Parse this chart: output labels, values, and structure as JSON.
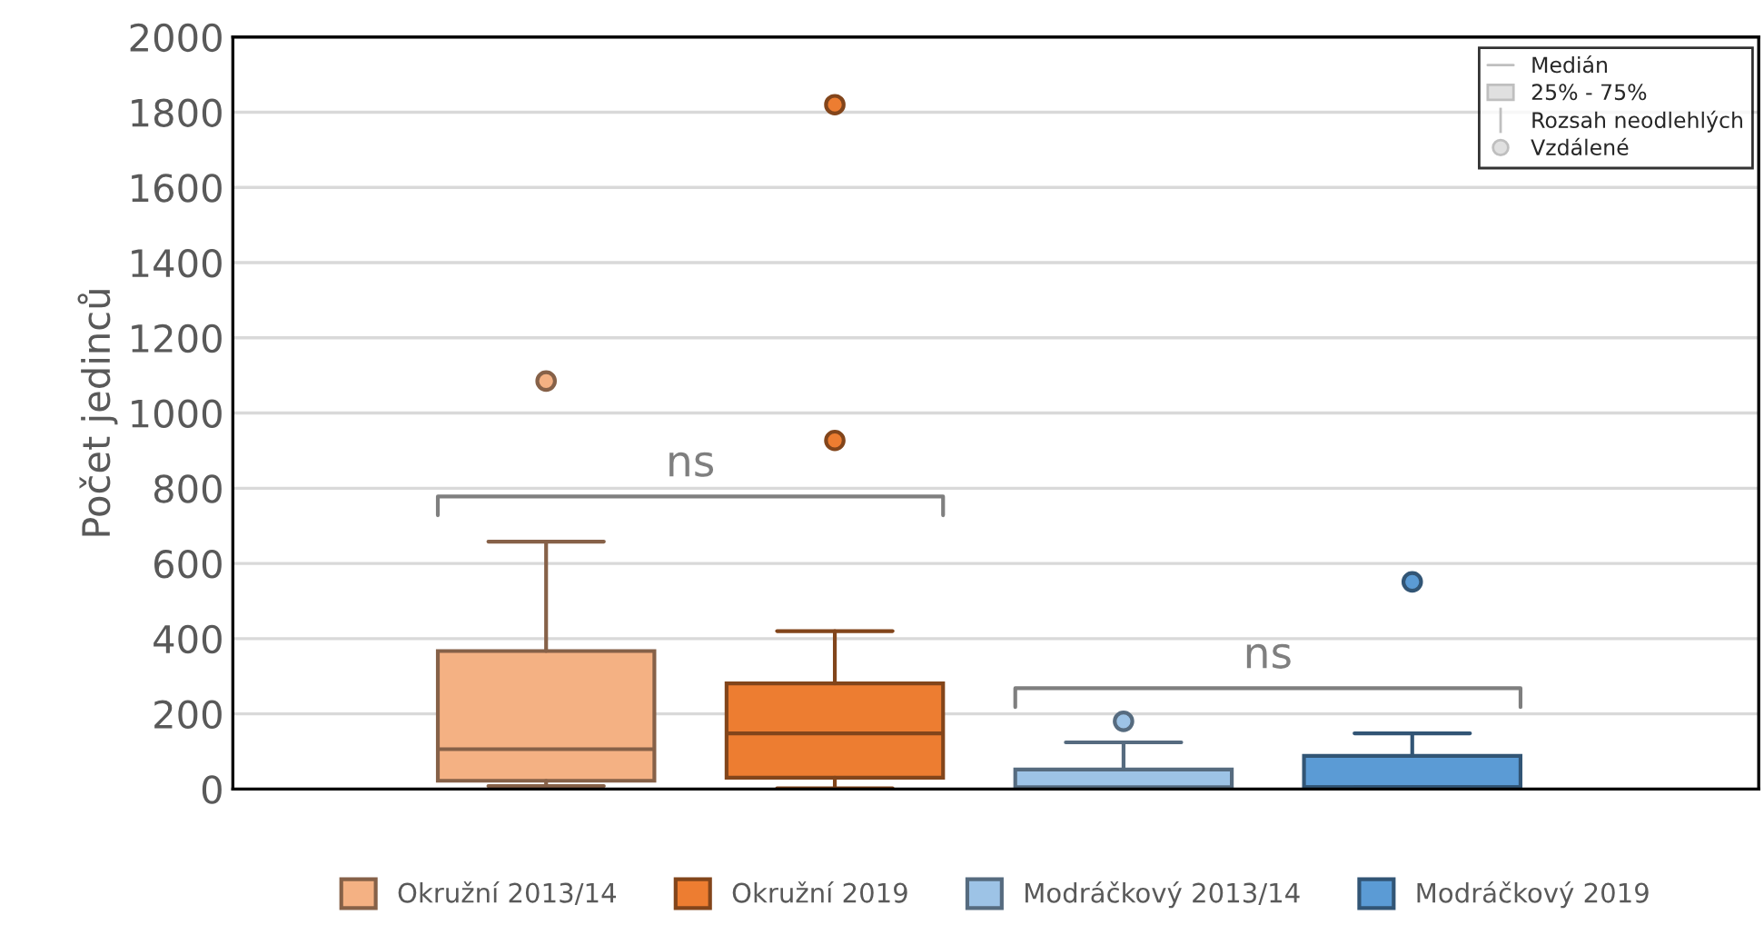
{
  "chart_data": {
    "type": "box",
    "ylabel": "Počet jedinců",
    "categories": [
      null
    ],
    "series": [
      {
        "name": "Okružní 2013/14",
        "color": "#f4b183",
        "boxes": [
          {
            "low": 8,
            "q1": 22,
            "median": 106,
            "q3": 367,
            "high": 658,
            "outliers": [
              1085
            ]
          }
        ]
      },
      {
        "name": "Okružní 2019",
        "color": "#ed7d31",
        "boxes": [
          {
            "low": 2,
            "q1": 30,
            "median": 148,
            "q3": 281,
            "high": 420,
            "outliers": [
              1820,
              927
            ]
          }
        ]
      },
      {
        "name": "Modráčkový 2013/14",
        "color": "#9dc3e6",
        "boxes": [
          {
            "low": 3,
            "q1": 3,
            "median": 5,
            "q3": 52,
            "high": 124,
            "outliers": [
              180
            ]
          }
        ]
      },
      {
        "name": "Modráčkový 2019",
        "color": "#5b9bd5",
        "boxes": [
          {
            "low": 5,
            "q1": 5,
            "median": 5,
            "q3": 88,
            "high": 148,
            "outliers": [
              551
            ]
          }
        ]
      }
    ],
    "ylim": [
      0,
      2000
    ],
    "yticks": [
      0,
      200,
      400,
      600,
      800,
      1000,
      1200,
      1400,
      1600,
      1800,
      2000
    ],
    "grid": "y",
    "legend": "bottom",
    "annotations": [
      "ns",
      "ns",
      "Medián",
      "25% - 75%",
      "Rozsah neodlehlých",
      "Vzdálené"
    ]
  }
}
